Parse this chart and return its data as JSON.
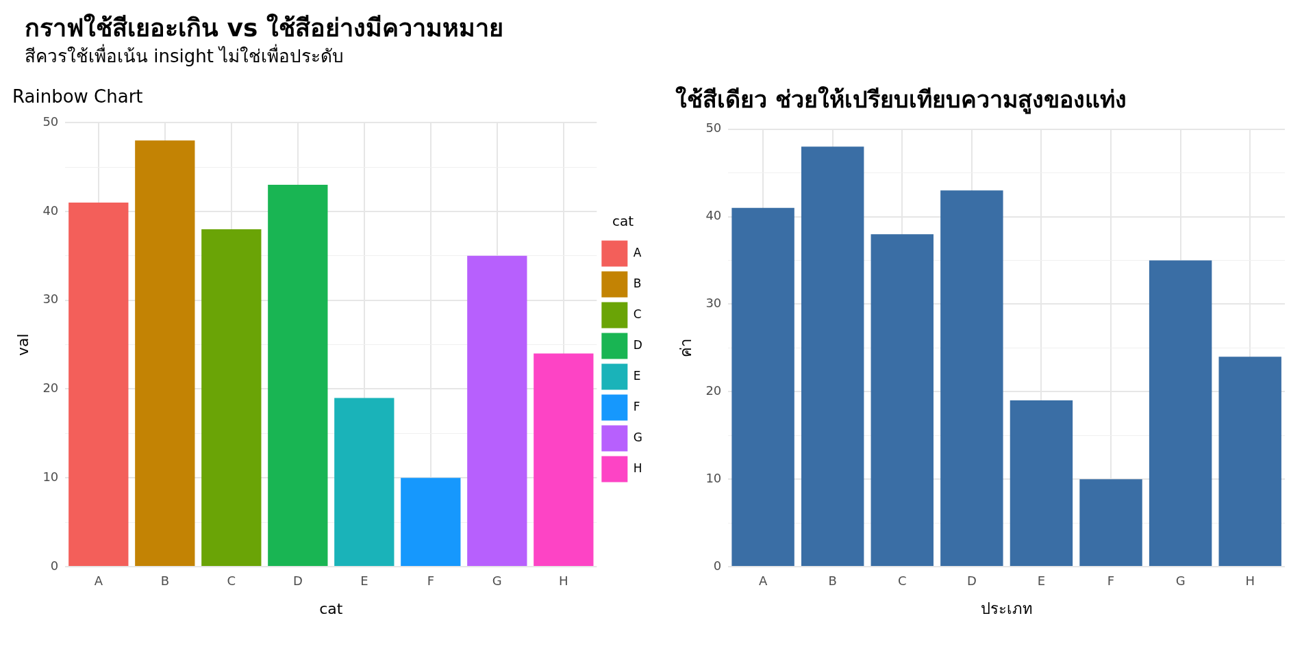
{
  "chart_data": [
    {
      "type": "other",
      "title": "กราฟใช้สีเยอะเกิน vs ใช้สีอย่างมีความหมาย",
      "subtitle": "สีควรใช้เพื่อเน้น insight ไม่ใช่เพื่อประดับ"
    },
    {
      "type": "bar",
      "title": "Rainbow Chart",
      "xlabel": "cat",
      "ylabel": "val",
      "legend_title": "cat",
      "legend": "right",
      "grid": true,
      "categories": [
        "A",
        "B",
        "C",
        "D",
        "E",
        "F",
        "G",
        "H"
      ],
      "series": [
        {
          "name": "A",
          "color": "#f35f5a",
          "values": [
            41,
            null,
            null,
            null,
            null,
            null,
            null,
            null
          ]
        },
        {
          "name": "B",
          "color": "#c38304",
          "values": [
            null,
            48,
            null,
            null,
            null,
            null,
            null,
            null
          ]
        },
        {
          "name": "C",
          "color": "#6aa406",
          "values": [
            null,
            null,
            38,
            null,
            null,
            null,
            null,
            null
          ]
        },
        {
          "name": "D",
          "color": "#19b553",
          "values": [
            null,
            null,
            null,
            43,
            null,
            null,
            null,
            null
          ]
        },
        {
          "name": "E",
          "color": "#1ab3b9",
          "values": [
            null,
            null,
            null,
            null,
            19,
            null,
            null,
            null
          ]
        },
        {
          "name": "F",
          "color": "#1698fd",
          "values": [
            null,
            null,
            null,
            null,
            null,
            10,
            null,
            null
          ]
        },
        {
          "name": "G",
          "color": "#b760fd",
          "values": [
            null,
            null,
            null,
            null,
            null,
            null,
            35,
            null
          ]
        },
        {
          "name": "H",
          "color": "#fd44c5",
          "values": [
            null,
            null,
            null,
            null,
            null,
            null,
            null,
            24
          ]
        }
      ],
      "ylim": [
        0,
        50
      ],
      "yticks": [
        0,
        {
          "value": 5,
          "label": null
        },
        10,
        {
          "value": 15,
          "label": null
        },
        20,
        {
          "value": 25,
          "label": null
        },
        30,
        {
          "value": 35,
          "label": null
        },
        40,
        {
          "value": 45,
          "label": null
        },
        50
      ]
    },
    {
      "type": "bar",
      "title": "ใช้สีเดียว ช่วยให้เปรียบเทียบความสูงของแท่ง",
      "xlabel": "ประเภท",
      "ylabel": "ค่า",
      "grid": true,
      "categories": [
        "A",
        "B",
        "C",
        "D",
        "E",
        "F",
        "G",
        "H"
      ],
      "values": [
        41,
        48,
        38,
        43,
        19,
        10,
        35,
        24
      ],
      "color": "#3a6ea5",
      "ylim": [
        0,
        50
      ],
      "yticks": [
        0,
        {
          "value": 5,
          "label": null
        },
        10,
        {
          "value": 15,
          "label": null
        },
        20,
        {
          "value": 25,
          "label": null
        },
        30,
        {
          "value": 35,
          "label": null
        },
        40,
        {
          "value": 45,
          "label": null
        },
        50
      ]
    }
  ]
}
